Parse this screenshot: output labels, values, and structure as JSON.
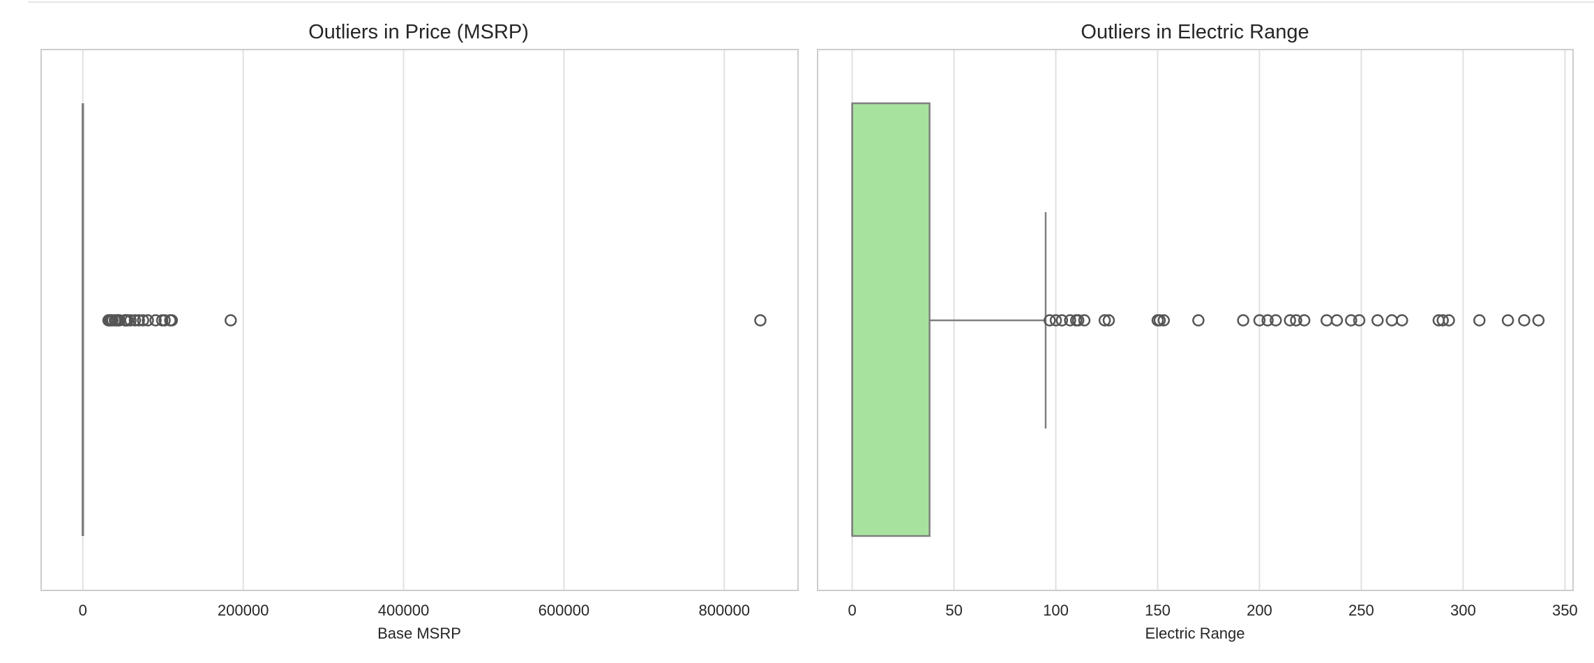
{
  "chart_data": [
    {
      "type": "box",
      "orientation": "horizontal",
      "title": "Outliers in Price (MSRP)",
      "xlabel": "Base MSRP",
      "xlim": [
        -52000,
        892000
      ],
      "xticks": [
        0,
        200000,
        400000,
        600000,
        800000
      ],
      "grid": true,
      "box": {
        "min": 0,
        "q1": 0,
        "median": 0,
        "q3": 0,
        "whisker_low": 0,
        "whisker_high": 0,
        "color": "#808080"
      },
      "outliers": [
        31950,
        32995,
        33990,
        34995,
        36900,
        39995,
        41450,
        43700,
        44100,
        45600,
        52650,
        52900,
        53400,
        54950,
        55700,
        59400,
        64950,
        69900,
        75095,
        81100,
        90700,
        98950,
        102000,
        109000,
        110950,
        184400,
        845000
      ]
    },
    {
      "type": "box",
      "orientation": "horizontal",
      "title": "Outliers in Electric Range",
      "xlabel": "Electric Range",
      "xlim": [
        -17,
        354
      ],
      "xticks": [
        0,
        50,
        100,
        150,
        200,
        250,
        300,
        350
      ],
      "grid": true,
      "box": {
        "min": 0,
        "q1": 0,
        "median": 0,
        "q3": 38,
        "whisker_low": 0,
        "whisker_high": 95,
        "color": "#a8e29f"
      },
      "outliers": [
        97,
        100,
        103,
        107,
        110,
        111,
        114,
        124,
        126,
        150,
        151,
        153,
        170,
        192,
        200,
        204,
        208,
        215,
        218,
        222,
        233,
        238,
        245,
        249,
        258,
        265,
        270,
        288,
        290,
        293,
        308,
        322,
        330,
        337
      ]
    }
  ]
}
